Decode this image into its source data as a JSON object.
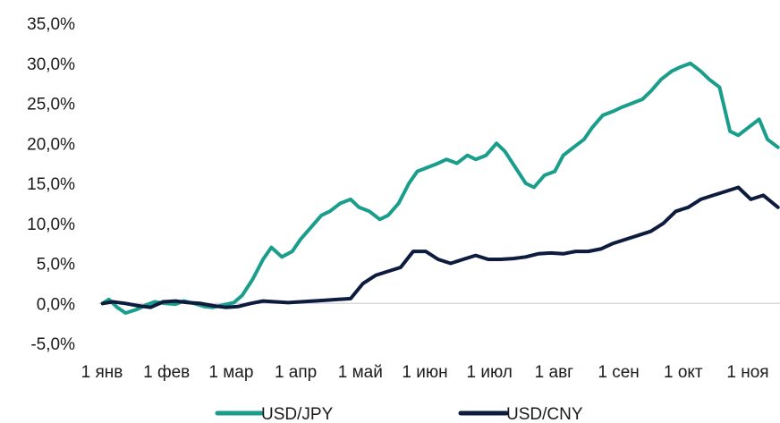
{
  "chart_data": {
    "type": "line",
    "title": "",
    "xlabel": "",
    "ylabel": "",
    "x_ticks": [
      "1 янв",
      "1 фев",
      "1 мар",
      "1 апр",
      "1 май",
      "1 июн",
      "1 июл",
      "1 авг",
      "1 сен",
      "1 окт",
      "1 ноя"
    ],
    "y_ticks": [
      "-5,0%",
      "0,0%",
      "5,0%",
      "10,0%",
      "15,0%",
      "20,0%",
      "25,0%",
      "30,0%",
      "35,0%"
    ],
    "ylim": [
      -5,
      35
    ],
    "xlim": [
      "2022-01-01",
      "2022-11-24"
    ],
    "grid": false,
    "legend_position": "bottom",
    "series": [
      {
        "name": "USD/JPY",
        "color": "#1a9e8c",
        "x": [
          "2022-01-03",
          "2022-01-06",
          "2022-01-10",
          "2022-01-14",
          "2022-01-19",
          "2022-01-24",
          "2022-01-28",
          "2022-02-02",
          "2022-02-07",
          "2022-02-11",
          "2022-02-16",
          "2022-02-21",
          "2022-02-25",
          "2022-03-02",
          "2022-03-07",
          "2022-03-11",
          "2022-03-16",
          "2022-03-21",
          "2022-03-25",
          "2022-03-30",
          "2022-04-04",
          "2022-04-08",
          "2022-04-13",
          "2022-04-18",
          "2022-04-22",
          "2022-04-27",
          "2022-05-02",
          "2022-05-06",
          "2022-05-11",
          "2022-05-16",
          "2022-05-20",
          "2022-05-25",
          "2022-05-30",
          "2022-06-03",
          "2022-06-08",
          "2022-06-13",
          "2022-06-17",
          "2022-06-22",
          "2022-06-27",
          "2022-07-01",
          "2022-07-06",
          "2022-07-11",
          "2022-07-15",
          "2022-07-20",
          "2022-07-25",
          "2022-07-29",
          "2022-08-03",
          "2022-08-08",
          "2022-08-12",
          "2022-08-17",
          "2022-08-22",
          "2022-08-26",
          "2022-08-31",
          "2022-09-05",
          "2022-09-09",
          "2022-09-14",
          "2022-09-19",
          "2022-09-23",
          "2022-09-28",
          "2022-10-03",
          "2022-10-07",
          "2022-10-12",
          "2022-10-17",
          "2022-10-21",
          "2022-10-26",
          "2022-10-31",
          "2022-11-04",
          "2022-11-09",
          "2022-11-14",
          "2022-11-18",
          "2022-11-23"
        ],
        "values": [
          0.0,
          0.5,
          -0.5,
          -1.2,
          -0.8,
          -0.2,
          0.2,
          0.0,
          -0.1,
          0.3,
          0.0,
          -0.4,
          -0.5,
          -0.2,
          0.1,
          1.0,
          3.0,
          5.5,
          7.0,
          5.8,
          6.5,
          8.0,
          9.5,
          11.0,
          11.5,
          12.5,
          13.0,
          12.0,
          11.5,
          10.5,
          11.0,
          12.5,
          15.0,
          16.5,
          17.0,
          17.5,
          18.0,
          17.5,
          18.5,
          18.0,
          18.5,
          20.0,
          19.0,
          17.0,
          15.0,
          14.5,
          16.0,
          16.5,
          18.5,
          19.5,
          20.5,
          22.0,
          23.5,
          24.0,
          24.5,
          25.0,
          25.5,
          26.5,
          28.0,
          29.0,
          29.5,
          30.0,
          29.0,
          28.0,
          27.0,
          21.5,
          21.0,
          22.0,
          23.0,
          20.5,
          19.5
        ]
      },
      {
        "name": "USD/CNY",
        "color": "#0d1b3e",
        "x": [
          "2022-01-03",
          "2022-01-08",
          "2022-01-14",
          "2022-01-20",
          "2022-01-26",
          "2022-02-01",
          "2022-02-07",
          "2022-02-13",
          "2022-02-19",
          "2022-02-25",
          "2022-03-03",
          "2022-03-09",
          "2022-03-15",
          "2022-03-21",
          "2022-03-27",
          "2022-04-02",
          "2022-04-08",
          "2022-04-14",
          "2022-04-20",
          "2022-04-26",
          "2022-05-02",
          "2022-05-08",
          "2022-05-14",
          "2022-05-20",
          "2022-05-26",
          "2022-06-01",
          "2022-06-07",
          "2022-06-13",
          "2022-06-19",
          "2022-06-25",
          "2022-07-01",
          "2022-07-07",
          "2022-07-13",
          "2022-07-19",
          "2022-07-25",
          "2022-07-31",
          "2022-08-06",
          "2022-08-12",
          "2022-08-18",
          "2022-08-24",
          "2022-08-30",
          "2022-09-05",
          "2022-09-11",
          "2022-09-17",
          "2022-09-23",
          "2022-09-29",
          "2022-10-05",
          "2022-10-11",
          "2022-10-17",
          "2022-10-23",
          "2022-10-29",
          "2022-11-04",
          "2022-11-10",
          "2022-11-16",
          "2022-11-23"
        ],
        "values": [
          0.0,
          0.2,
          0.0,
          -0.3,
          -0.5,
          0.2,
          0.3,
          0.1,
          0.0,
          -0.3,
          -0.5,
          -0.4,
          0.0,
          0.3,
          0.2,
          0.1,
          0.2,
          0.3,
          0.4,
          0.5,
          0.6,
          2.5,
          3.5,
          4.0,
          4.5,
          6.5,
          6.5,
          5.5,
          5.0,
          5.5,
          6.0,
          5.5,
          5.5,
          5.6,
          5.8,
          6.2,
          6.3,
          6.2,
          6.5,
          6.5,
          6.8,
          7.5,
          8.0,
          8.5,
          9.0,
          10.0,
          11.5,
          12.0,
          13.0,
          13.5,
          14.0,
          14.5,
          13.0,
          13.5,
          12.0
        ]
      }
    ]
  }
}
